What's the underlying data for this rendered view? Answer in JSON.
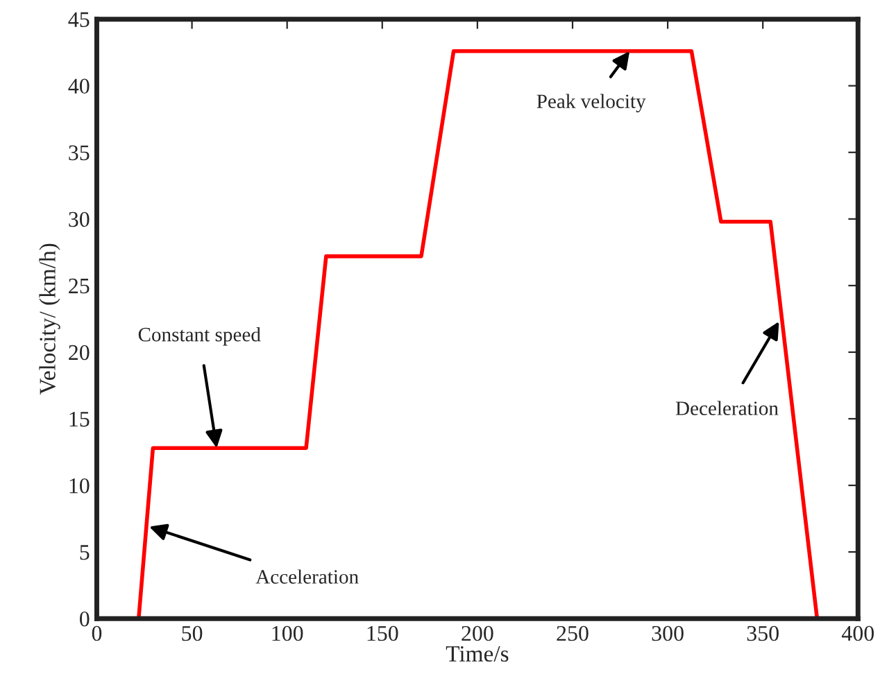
{
  "chart_data": {
    "type": "line",
    "xlabel": "Time/s",
    "ylabel": "Velocity/ (km/h)",
    "x": [
      0,
      22,
      29.5,
      110,
      120.5,
      170.5,
      187.5,
      312.5,
      328,
      354,
      378.5
    ],
    "series": [
      {
        "color": "#ff0000",
        "values": [
          0,
          0,
          12.8,
          12.8,
          27.2,
          27.2,
          42.6,
          42.6,
          29.8,
          29.8,
          0
        ]
      }
    ],
    "xlim": [
      0,
      400
    ],
    "ylim": [
      0,
      45
    ],
    "xticks": [
      0,
      50,
      100,
      150,
      200,
      250,
      300,
      350,
      400
    ],
    "yticks": [
      0,
      5,
      10,
      15,
      20,
      25,
      30,
      35,
      40,
      45
    ],
    "grid": false,
    "legend": false,
    "marker": "none",
    "line_style": "solid",
    "annotations": [
      {
        "text": "Acceleration",
        "x": 27.5,
        "y": 6.9
      },
      {
        "text": "Constant speed",
        "x": 63,
        "y": 12.8
      },
      {
        "text": "Peak velocity",
        "x": 280,
        "y": 42.6
      },
      {
        "text": "Deceleration",
        "x": 358.5,
        "y": 22.3
      }
    ]
  }
}
